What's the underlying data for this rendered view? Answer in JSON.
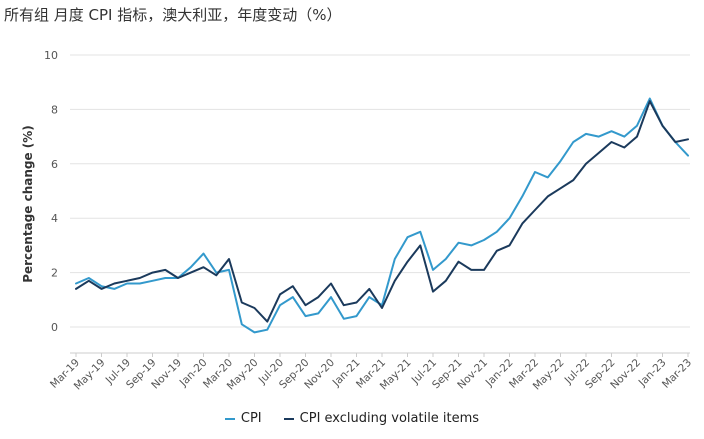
{
  "title": "所有组 月度 CPI 指标，澳大利亚，年度变动（%）",
  "chart_data": {
    "type": "line",
    "ylabel": "Percentage change (%)",
    "xlabel": "",
    "ylim": [
      0,
      10
    ],
    "yticks": [
      0,
      2,
      4,
      6,
      8,
      10
    ],
    "grid": true,
    "legend_position": "bottom",
    "x": [
      "Mar-19",
      "Apr-19",
      "May-19",
      "Jun-19",
      "Jul-19",
      "Aug-19",
      "Sep-19",
      "Oct-19",
      "Nov-19",
      "Dec-19",
      "Jan-20",
      "Feb-20",
      "Mar-20",
      "Apr-20",
      "May-20",
      "Jun-20",
      "Jul-20",
      "Aug-20",
      "Sep-20",
      "Oct-20",
      "Nov-20",
      "Dec-20",
      "Jan-21",
      "Feb-21",
      "Mar-21",
      "Apr-21",
      "May-21",
      "Jun-21",
      "Jul-21",
      "Aug-21",
      "Sep-21",
      "Oct-21",
      "Nov-21",
      "Dec-21",
      "Jan-22",
      "Feb-22",
      "Mar-22",
      "Apr-22",
      "May-22",
      "Jun-22",
      "Jul-22",
      "Aug-22",
      "Sep-22",
      "Oct-22",
      "Nov-22",
      "Dec-22",
      "Jan-23",
      "Feb-23",
      "Mar-23"
    ],
    "xticklabels": [
      "Mar-19",
      "May-19",
      "Jul-19",
      "Sep-19",
      "Nov-19",
      "Jan-20",
      "Mar-20",
      "May-20",
      "Jul-20",
      "Sep-20",
      "Nov-20",
      "Jan-21",
      "Mar-21",
      "May-21",
      "Jul-21",
      "Sep-21",
      "Nov-21",
      "Jan-22",
      "Mar-22",
      "May-22",
      "Jul-22",
      "Sep-22",
      "Nov-22",
      "Jan-23",
      "Mar-23"
    ],
    "series": [
      {
        "name": "CPI",
        "color": "#3399cc",
        "values": [
          1.6,
          1.8,
          1.5,
          1.4,
          1.6,
          1.6,
          1.7,
          1.8,
          1.8,
          2.2,
          2.7,
          2.0,
          2.1,
          0.1,
          -0.2,
          -0.1,
          0.8,
          1.1,
          0.4,
          0.5,
          1.1,
          0.3,
          0.4,
          1.1,
          0.8,
          2.5,
          3.3,
          3.5,
          2.1,
          2.5,
          3.1,
          3.0,
          3.2,
          3.5,
          4.0,
          4.8,
          5.7,
          5.5,
          6.1,
          6.8,
          7.1,
          7.0,
          7.2,
          7.0,
          7.4,
          8.4,
          7.4,
          6.8,
          6.3
        ]
      },
      {
        "name": "CPI excluding volatile items",
        "color": "#1b3a5c",
        "values": [
          1.4,
          1.7,
          1.4,
          1.6,
          1.7,
          1.8,
          2.0,
          2.1,
          1.8,
          2.0,
          2.2,
          1.9,
          2.5,
          0.9,
          0.7,
          0.2,
          1.2,
          1.5,
          0.8,
          1.1,
          1.6,
          0.8,
          0.9,
          1.4,
          0.7,
          1.7,
          2.4,
          3.0,
          1.3,
          1.7,
          2.4,
          2.1,
          2.1,
          2.8,
          3.0,
          3.8,
          4.3,
          4.8,
          5.1,
          5.4,
          6.0,
          6.4,
          6.8,
          6.6,
          7.0,
          8.3,
          7.4,
          6.8,
          6.9
        ]
      }
    ]
  }
}
